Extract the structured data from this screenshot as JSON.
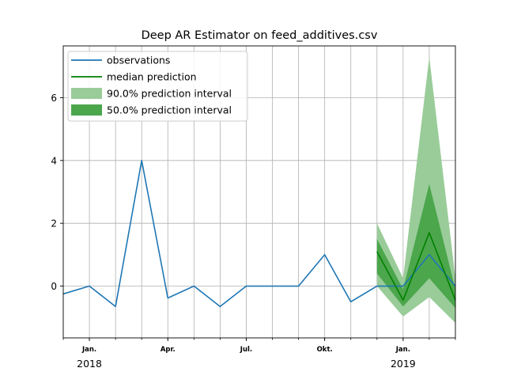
{
  "chart_data": {
    "type": "line",
    "title": "Deep AR Estimator on feed_additives.csv",
    "xlabel": "",
    "ylabel": "",
    "ylim": [
      -1.65,
      7.65
    ],
    "y_ticks": [
      0,
      2,
      4,
      6
    ],
    "grid": true,
    "legend_position": "top-left",
    "x_tick_labels": [
      {
        "label": "Jan.",
        "date": "2018-01"
      },
      {
        "label": "Apr.",
        "date": "2018-04"
      },
      {
        "label": "Jul.",
        "date": "2018-07"
      },
      {
        "label": "Okt.",
        "date": "2018-10"
      },
      {
        "label": "Jan.",
        "date": "2019-01"
      }
    ],
    "x_year_labels": [
      {
        "label": "2018",
        "date": "2018-01"
      },
      {
        "label": "2019",
        "date": "2019-01"
      }
    ],
    "x_minor_dates": [
      "2017-12",
      "2018-01",
      "2018-02",
      "2018-03",
      "2018-04",
      "2018-05",
      "2018-06",
      "2018-07",
      "2018-08",
      "2018-09",
      "2018-10",
      "2018-11",
      "2018-12",
      "2019-01",
      "2019-02",
      "2019-03"
    ],
    "series": [
      {
        "name": "observations",
        "kind": "line",
        "color": "#1f77b4",
        "x": [
          "2017-12",
          "2018-01",
          "2018-02",
          "2018-03",
          "2018-04",
          "2018-05",
          "2018-06",
          "2018-07",
          "2018-08",
          "2018-09",
          "2018-10",
          "2018-11",
          "2018-12",
          "2019-01",
          "2019-02",
          "2019-03"
        ],
        "values": [
          -0.25,
          0.0,
          -0.65,
          4.0,
          -0.38,
          0.0,
          -0.65,
          0.0,
          0.0,
          0.0,
          1.0,
          -0.5,
          0.0,
          0.0,
          1.0,
          0.0
        ]
      },
      {
        "name": "median prediction",
        "kind": "line",
        "color": "#008000",
        "x": [
          "2018-12",
          "2019-01",
          "2019-02",
          "2019-03"
        ],
        "values": [
          1.1,
          -0.45,
          1.7,
          -0.45
        ]
      },
      {
        "name": "90.0% prediction interval",
        "kind": "band",
        "color": "#99cc99",
        "x": [
          "2018-12",
          "2019-01",
          "2019-02",
          "2019-03"
        ],
        "lower": [
          0.0,
          -0.97,
          -0.35,
          -1.17
        ],
        "upper": [
          2.0,
          0.25,
          7.3,
          0.25
        ]
      },
      {
        "name": "50.0% prediction interval",
        "kind": "band",
        "color": "#4ca64c",
        "x": [
          "2018-12",
          "2019-01",
          "2019-02",
          "2019-03"
        ],
        "lower": [
          0.4,
          -0.65,
          0.25,
          -0.7
        ],
        "upper": [
          1.5,
          -0.1,
          3.25,
          -0.1
        ]
      }
    ]
  }
}
